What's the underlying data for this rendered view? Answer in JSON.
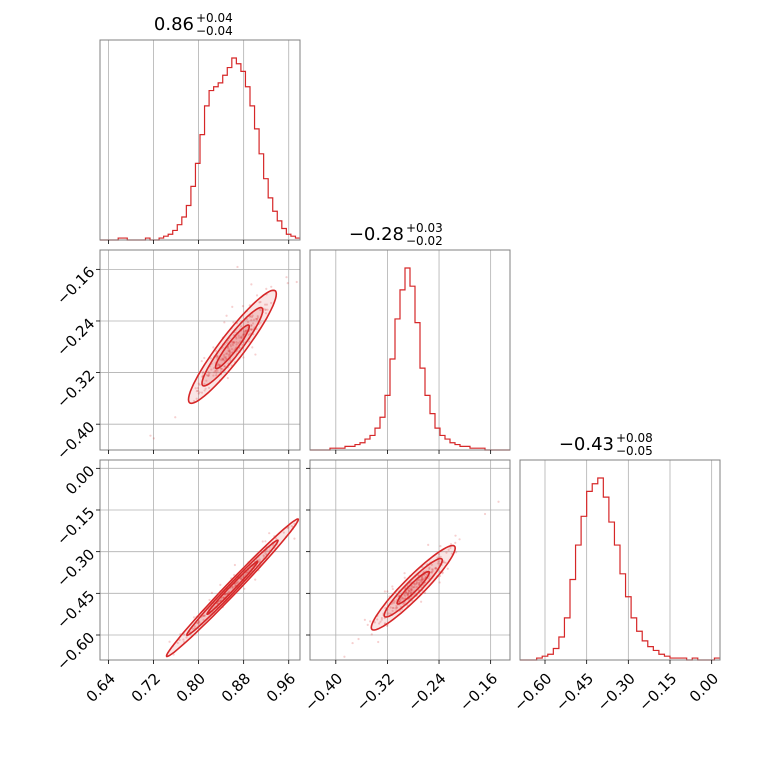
{
  "colors": {
    "series": "#d62728",
    "fill": "#d62728",
    "grid": "#b0b0b0",
    "frame": "#808080"
  },
  "chart_data": {
    "type": "corner",
    "titles": [
      {
        "main": "0.86",
        "plus": "+0.04",
        "minus": "−0.04"
      },
      {
        "main": "−0.28",
        "plus": "+0.03",
        "minus": "−0.02"
      },
      {
        "main": "−0.43",
        "plus": "+0.08",
        "minus": "−0.05"
      }
    ],
    "ranges": [
      [
        0.625,
        0.98
      ],
      [
        -0.44,
        -0.13
      ],
      [
        -0.69,
        0.03
      ]
    ],
    "ticks": [
      {
        "values": [
          0.64,
          0.72,
          0.8,
          0.88,
          0.96
        ],
        "labels": [
          "0.64",
          "0.72",
          "0.80",
          "0.88",
          "0.96"
        ]
      },
      {
        "values": [
          -0.4,
          -0.32,
          -0.24,
          -0.16
        ],
        "labels": [
          "−0.40",
          "−0.32",
          "−0.24",
          "−0.16"
        ]
      },
      {
        "values": [
          -0.6,
          -0.45,
          -0.3,
          -0.15,
          0.0
        ],
        "labels": [
          "−0.60",
          "−0.45",
          "−0.30",
          "−0.15",
          "0.00"
        ]
      }
    ],
    "histograms": [
      {
        "param": 0,
        "bin_start": 0.625,
        "bin_end": 0.98,
        "counts": [
          0,
          0,
          0,
          0,
          1,
          1,
          0,
          0,
          0,
          0,
          1,
          0,
          0,
          1,
          2,
          3,
          5,
          8,
          12,
          18,
          28,
          40,
          55,
          70,
          78,
          80,
          82,
          86,
          90,
          95,
          92,
          88,
          80,
          70,
          58,
          45,
          32,
          22,
          15,
          10,
          6,
          3,
          2,
          1
        ]
      },
      {
        "param": 1,
        "bin_start": -0.44,
        "bin_end": -0.13,
        "counts": [
          0,
          0,
          0,
          0,
          1,
          1,
          1,
          2,
          2,
          3,
          4,
          6,
          8,
          12,
          18,
          30,
          50,
          72,
          88,
          100,
          90,
          70,
          45,
          30,
          20,
          12,
          8,
          6,
          4,
          3,
          2,
          2,
          1,
          1,
          1,
          0,
          0,
          0,
          0,
          0
        ]
      },
      {
        "param": 2,
        "bin_start": -0.69,
        "bin_end": 0.03,
        "counts": [
          0,
          0,
          0,
          1,
          2,
          3,
          6,
          12,
          22,
          42,
          60,
          75,
          88,
          92,
          95,
          85,
          72,
          60,
          45,
          33,
          22,
          15,
          10,
          7,
          5,
          3,
          2,
          1,
          1,
          1,
          0,
          1,
          0,
          0,
          0,
          1
        ]
      }
    ],
    "scatter_pairs": [
      {
        "x": 0,
        "y": 1,
        "center": [
          0.86,
          -0.28
        ],
        "slope": 1.05,
        "spread": [
          0.03,
          0.012
        ]
      },
      {
        "x": 0,
        "y": 2,
        "center": [
          0.86,
          -0.43
        ],
        "slope": 2.1,
        "spread": [
          0.045,
          0.012
        ]
      },
      {
        "x": 1,
        "y": 2,
        "center": [
          -0.28,
          -0.43
        ],
        "slope": 2.2,
        "spread": [
          0.025,
          0.02
        ]
      }
    ]
  }
}
